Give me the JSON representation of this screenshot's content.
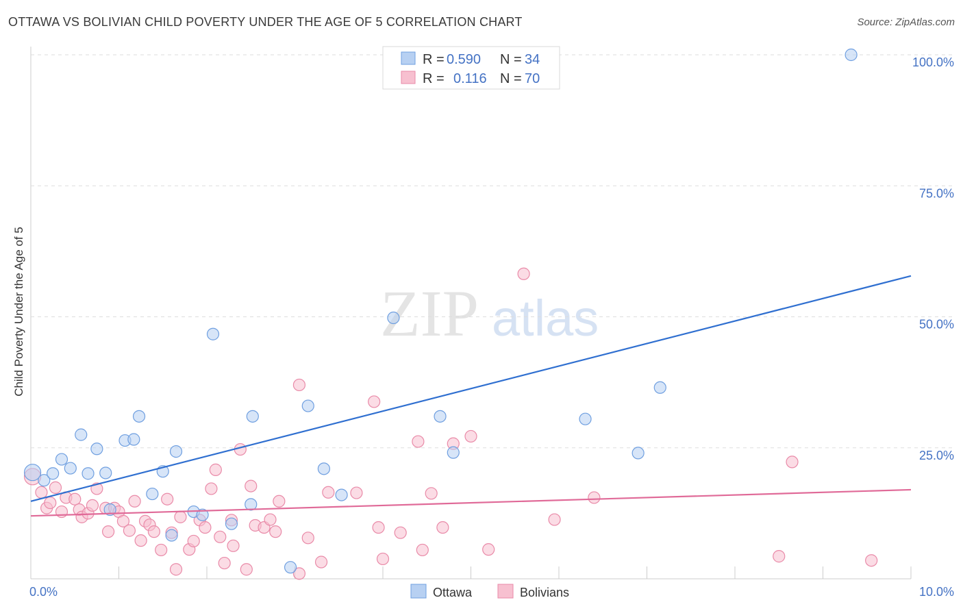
{
  "title": "OTTAWA VS BOLIVIAN CHILD POVERTY UNDER THE AGE OF 5 CORRELATION CHART",
  "source": "Source: ZipAtlas.com",
  "watermark": {
    "zip": "ZIP",
    "atlas": "atlas"
  },
  "colors": {
    "ottawa_fill": "#b7d0f2",
    "ottawa_stroke": "#6f9fe0",
    "ottawa_line": "#2f6fd0",
    "bolivians_fill": "#f7c0d0",
    "bolivians_stroke": "#e98aa8",
    "bolivians_line": "#e06a98",
    "tick": "#4472c4",
    "grid": "#dddddd"
  },
  "legend": {
    "rows": [
      {
        "r_label": "R =",
        "r_value": "0.590",
        "n_label": "N =",
        "n_value": "34"
      },
      {
        "r_label": "R =",
        "r_value": "0.116",
        "n_label": "N =",
        "n_value": "70"
      }
    ]
  },
  "bottom_legend": {
    "ottawa": "Ottawa",
    "bolivians": "Bolivians"
  },
  "chart_data": {
    "type": "scatter",
    "title": "OTTAWA VS BOLIVIAN CHILD POVERTY UNDER THE AGE OF 5 CORRELATION CHART",
    "xlabel": "",
    "ylabel": "Child Poverty Under the Age of 5",
    "xlim": [
      0,
      10
    ],
    "ylim": [
      0,
      100
    ],
    "x_tick_labels": {
      "min": "0.0%",
      "max": "10.0%"
    },
    "y_ticks": [
      25,
      50,
      75,
      100
    ],
    "y_tick_labels": [
      "25.0%",
      "50.0%",
      "75.0%",
      "100.0%"
    ],
    "grid": true,
    "series": [
      {
        "name": "Ottawa",
        "r": 0.59,
        "n": 34,
        "trend": {
          "x0": 0,
          "y0": 14.8,
          "x1": 10,
          "y1": 57.8
        },
        "points": [
          [
            0.02,
            20.3
          ],
          [
            0.15,
            18.8
          ],
          [
            0.25,
            20.1
          ],
          [
            0.35,
            22.8
          ],
          [
            0.45,
            21.1
          ],
          [
            0.57,
            27.5
          ],
          [
            0.65,
            20.1
          ],
          [
            0.75,
            24.8
          ],
          [
            0.85,
            20.2
          ],
          [
            0.9,
            13.2
          ],
          [
            1.07,
            26.4
          ],
          [
            1.17,
            26.6
          ],
          [
            1.23,
            31.0
          ],
          [
            1.38,
            16.2
          ],
          [
            1.5,
            20.5
          ],
          [
            1.6,
            8.3
          ],
          [
            1.65,
            24.3
          ],
          [
            1.85,
            12.8
          ],
          [
            1.95,
            12.2
          ],
          [
            2.07,
            46.7
          ],
          [
            2.28,
            10.5
          ],
          [
            2.5,
            14.2
          ],
          [
            2.52,
            31.0
          ],
          [
            2.95,
            2.2
          ],
          [
            3.15,
            33.0
          ],
          [
            3.33,
            21.0
          ],
          [
            3.53,
            16.0
          ],
          [
            4.12,
            49.8
          ],
          [
            4.65,
            31.0
          ],
          [
            4.8,
            24.1
          ],
          [
            6.3,
            30.5
          ],
          [
            6.9,
            24.0
          ],
          [
            7.15,
            36.5
          ],
          [
            9.32,
            100.0
          ]
        ]
      },
      {
        "name": "Bolivians",
        "r": 0.116,
        "n": 70,
        "trend": {
          "x0": 0,
          "y0": 12.0,
          "x1": 10,
          "y1": 17.0
        },
        "points": [
          [
            0.02,
            19.5
          ],
          [
            0.12,
            16.5
          ],
          [
            0.18,
            13.5
          ],
          [
            0.22,
            14.5
          ],
          [
            0.28,
            17.4
          ],
          [
            0.35,
            12.8
          ],
          [
            0.4,
            15.5
          ],
          [
            0.5,
            15.2
          ],
          [
            0.55,
            13.2
          ],
          [
            0.58,
            11.8
          ],
          [
            0.65,
            12.5
          ],
          [
            0.7,
            14.0
          ],
          [
            0.75,
            17.2
          ],
          [
            0.85,
            13.5
          ],
          [
            0.88,
            9.0
          ],
          [
            0.95,
            13.5
          ],
          [
            1.0,
            12.8
          ],
          [
            1.05,
            11.0
          ],
          [
            1.12,
            9.2
          ],
          [
            1.18,
            14.8
          ],
          [
            1.25,
            7.3
          ],
          [
            1.3,
            11.0
          ],
          [
            1.35,
            10.3
          ],
          [
            1.4,
            9.0
          ],
          [
            1.48,
            5.5
          ],
          [
            1.55,
            15.2
          ],
          [
            1.6,
            8.8
          ],
          [
            1.65,
            1.8
          ],
          [
            1.7,
            11.8
          ],
          [
            1.8,
            5.6
          ],
          [
            1.85,
            7.2
          ],
          [
            1.92,
            11.2
          ],
          [
            1.98,
            9.8
          ],
          [
            2.05,
            17.2
          ],
          [
            2.1,
            20.8
          ],
          [
            2.15,
            8.0
          ],
          [
            2.2,
            3.0
          ],
          [
            2.28,
            11.2
          ],
          [
            2.3,
            6.3
          ],
          [
            2.38,
            24.7
          ],
          [
            2.45,
            1.8
          ],
          [
            2.5,
            17.7
          ],
          [
            2.55,
            10.2
          ],
          [
            2.65,
            9.8
          ],
          [
            2.72,
            11.3
          ],
          [
            2.78,
            9.0
          ],
          [
            2.82,
            14.8
          ],
          [
            3.05,
            1.0
          ],
          [
            3.15,
            7.8
          ],
          [
            3.05,
            37.0
          ],
          [
            3.3,
            3.2
          ],
          [
            3.38,
            16.5
          ],
          [
            3.7,
            16.4
          ],
          [
            3.9,
            33.8
          ],
          [
            3.95,
            9.8
          ],
          [
            4.0,
            3.8
          ],
          [
            4.2,
            8.8
          ],
          [
            4.4,
            26.2
          ],
          [
            4.45,
            5.5
          ],
          [
            4.55,
            16.3
          ],
          [
            4.68,
            9.8
          ],
          [
            4.8,
            25.8
          ],
          [
            5.0,
            27.2
          ],
          [
            5.2,
            5.6
          ],
          [
            5.6,
            58.2
          ],
          [
            5.95,
            11.3
          ],
          [
            6.4,
            15.5
          ],
          [
            8.5,
            4.3
          ],
          [
            8.65,
            22.3
          ],
          [
            9.55,
            3.5
          ]
        ]
      }
    ]
  }
}
